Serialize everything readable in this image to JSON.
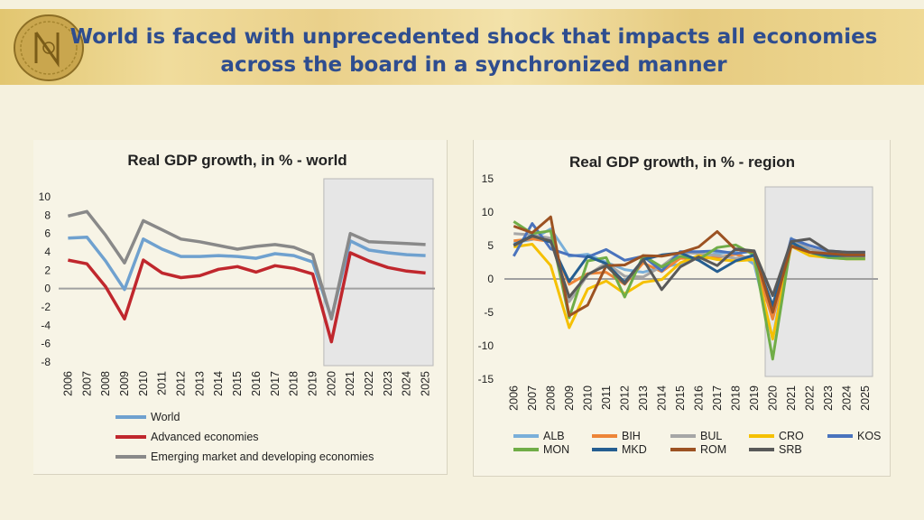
{
  "slide": {
    "title_line1": "World is faced with unprecedented shock that impacts all economies",
    "title_line2": "across the board in a synchronized manner",
    "coin_logo": "NBKO coin logo"
  },
  "chart_data": [
    {
      "type": "line",
      "title": "Real GDP growth, in % - world",
      "categories": [
        "2006",
        "2007",
        "2008",
        "2009",
        "2010",
        "2011",
        "2012",
        "2013",
        "2014",
        "2015",
        "2016",
        "2017",
        "2018",
        "2019",
        "2020",
        "2021",
        "2022",
        "2023",
        "2024",
        "2025"
      ],
      "yticks": [
        "10",
        "8",
        "6",
        "4",
        "2",
        "0",
        "-2",
        "-4",
        "-6",
        "-8"
      ],
      "ylim": [
        -8,
        10
      ],
      "shaded_from": "2020",
      "legend_position": "bottom",
      "series": [
        {
          "name": "World",
          "color": "#6fa1cf",
          "values": [
            5.5,
            5.6,
            3.0,
            -0.1,
            5.4,
            4.3,
            3.5,
            3.5,
            3.6,
            3.5,
            3.3,
            3.8,
            3.6,
            2.9,
            -3.2,
            5.2,
            4.2,
            3.9,
            3.7,
            3.6
          ]
        },
        {
          "name": "Advanced economies",
          "color": "#c0272d",
          "values": [
            3.1,
            2.7,
            0.2,
            -3.3,
            3.1,
            1.7,
            1.2,
            1.4,
            2.1,
            2.4,
            1.8,
            2.5,
            2.2,
            1.6,
            -5.8,
            3.9,
            3.0,
            2.3,
            1.9,
            1.7
          ]
        },
        {
          "name": "Emerging market and developing economies",
          "color": "#898989",
          "values": [
            7.9,
            8.4,
            5.8,
            2.8,
            7.4,
            6.4,
            5.4,
            5.1,
            4.7,
            4.3,
            4.6,
            4.8,
            4.5,
            3.7,
            -3.3,
            6.0,
            5.1,
            5.0,
            4.9,
            4.8
          ]
        }
      ]
    },
    {
      "type": "line",
      "title": "Real GDP growth, in % - region",
      "categories": [
        "2006",
        "2007",
        "2008",
        "2009",
        "2010",
        "2011",
        "2012",
        "2013",
        "2014",
        "2015",
        "2016",
        "2017",
        "2018",
        "2019",
        "2020",
        "2021",
        "2022",
        "2023",
        "2024",
        "2025"
      ],
      "yticks": [
        "15",
        "10",
        "5",
        "0",
        "-5",
        "-10",
        "-15"
      ],
      "ylim": [
        -15,
        15
      ],
      "shaded_from": "2020",
      "legend_position": "bottom",
      "series": [
        {
          "name": "ALB",
          "color": "#7aafd9",
          "values": [
            5.4,
            5.9,
            7.5,
            3.4,
            3.7,
            2.5,
            1.4,
            1.0,
            1.8,
            2.2,
            3.3,
            3.8,
            4.1,
            2.2,
            -9.0,
            6.1,
            4.0,
            4.0,
            4.0,
            3.9
          ]
        },
        {
          "name": "BIH",
          "color": "#ed8538",
          "values": [
            5.7,
            6.0,
            5.6,
            -0.8,
            0.8,
            1.0,
            -0.8,
            2.4,
            1.1,
            3.1,
            3.1,
            3.2,
            3.7,
            2.8,
            -6.0,
            5.0,
            4.0,
            3.5,
            3.3,
            3.2
          ]
        },
        {
          "name": "BUL",
          "color": "#a6a6a6",
          "values": [
            6.8,
            6.6,
            6.1,
            -3.4,
            0.6,
            2.4,
            0.4,
            0.3,
            1.9,
            4.0,
            3.8,
            3.5,
            3.1,
            3.4,
            -4.0,
            6.0,
            4.5,
            3.8,
            3.5,
            3.5
          ]
        },
        {
          "name": "CRO",
          "color": "#f5c000",
          "values": [
            4.8,
            5.2,
            2.0,
            -7.3,
            -1.5,
            -0.3,
            -2.2,
            -0.5,
            -0.1,
            2.4,
            3.5,
            2.9,
            2.7,
            2.9,
            -9.0,
            4.9,
            3.5,
            3.2,
            3.0,
            3.0
          ]
        },
        {
          "name": "KOS",
          "color": "#4a73bd",
          "values": [
            3.4,
            8.3,
            4.5,
            3.6,
            3.3,
            4.4,
            2.8,
            3.4,
            1.2,
            4.1,
            4.1,
            4.2,
            3.8,
            4.2,
            -5.0,
            6.0,
            5.0,
            4.2,
            4.0,
            4.0
          ]
        },
        {
          "name": "MON",
          "color": "#70ad47",
          "values": [
            8.6,
            6.8,
            7.2,
            -5.8,
            2.7,
            3.2,
            -2.7,
            3.5,
            1.8,
            3.4,
            2.9,
            4.7,
            5.1,
            3.6,
            -12.0,
            5.5,
            4.0,
            3.2,
            3.0,
            3.0
          ]
        },
        {
          "name": "MKD",
          "color": "#255e91",
          "values": [
            5.1,
            6.5,
            5.5,
            -0.4,
            3.4,
            2.3,
            -0.5,
            2.9,
            3.6,
            3.9,
            2.8,
            1.1,
            2.7,
            3.6,
            -4.0,
            5.5,
            4.0,
            3.5,
            3.5,
            3.5
          ]
        },
        {
          "name": "ROM",
          "color": "#9c5222",
          "values": [
            7.9,
            6.9,
            9.3,
            -5.5,
            -3.9,
            2.0,
            2.1,
            3.5,
            3.4,
            3.9,
            4.8,
            7.1,
            4.4,
            4.1,
            -5.0,
            4.9,
            4.0,
            3.8,
            3.6,
            3.6
          ]
        },
        {
          "name": "SRB",
          "color": "#595959",
          "values": [
            5.0,
            6.4,
            5.7,
            -2.7,
            0.7,
            2.0,
            -0.7,
            2.9,
            -1.6,
            1.8,
            3.3,
            2.0,
            4.5,
            4.2,
            -2.5,
            5.6,
            6.0,
            4.2,
            4.0,
            4.0
          ]
        }
      ]
    }
  ]
}
